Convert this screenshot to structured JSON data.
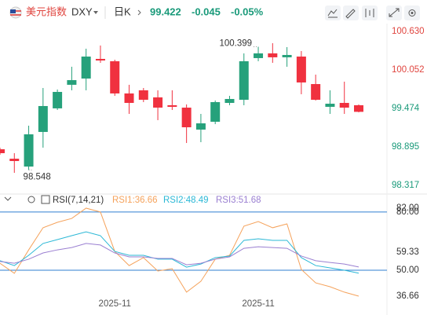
{
  "header": {
    "name": "美元指数",
    "symbol": "DXY",
    "period": "日K",
    "price": 99.422,
    "change": -0.045,
    "change_pct": "-0.05%"
  },
  "chart_data": [
    {
      "type": "candlestick",
      "categories": [
        null,
        null,
        null,
        null,
        null,
        null,
        null,
        null,
        "2025-11",
        null,
        null,
        null,
        null,
        null,
        null,
        null,
        null,
        null,
        "2025-11",
        null,
        null,
        null,
        null,
        null,
        null,
        null
      ],
      "open": [
        98.86,
        98.718,
        98.6,
        99.12,
        99.474,
        99.828,
        99.922,
        100.217,
        100.182,
        99.698,
        99.745,
        99.639,
        99.521,
        99.485,
        99.155,
        99.273,
        99.556,
        99.603,
        100.229,
        100.3,
        100.241,
        100.252,
        99.839,
        99.497,
        99.556,
        99.521
      ],
      "high": [
        98.884,
        98.801,
        99.214,
        99.78,
        99.757,
        100.099,
        100.37,
        100.418,
        100.205,
        99.828,
        99.78,
        99.745,
        99.745,
        99.533,
        99.391,
        99.592,
        99.662,
        100.3,
        100.399,
        100.453,
        100.394,
        100.335,
        99.981,
        99.745,
        99.875,
        99.533
      ],
      "low": [
        98.777,
        98.506,
        98.548,
        98.884,
        99.45,
        99.745,
        99.745,
        100.158,
        99.662,
        99.391,
        99.568,
        99.297,
        99.45,
        98.954,
        98.966,
        99.237,
        99.521,
        99.521,
        100.182,
        100.158,
        100.099,
        99.686,
        99.592,
        99.391,
        99.391,
        99.415
      ],
      "close": [
        98.801,
        98.683,
        99.084,
        99.509,
        99.721,
        99.898,
        100.252,
        100.193,
        99.698,
        99.556,
        99.603,
        99.485,
        99.497,
        99.19,
        99.249,
        99.568,
        99.615,
        100.182,
        100.3,
        100.241,
        100.276,
        99.863,
        99.603,
        99.544,
        99.485,
        99.422
      ],
      "up_color": "#26a17b",
      "down_color": "#f0313f",
      "annotate_high": 18,
      "annotate_low": 2,
      "ylim": [
        98.211,
        100.842
      ],
      "yticks": [
        {
          "value": 100.63,
          "label": "100.630"
        },
        {
          "value": 100.052,
          "label": "100.052"
        },
        {
          "value": 99.474,
          "label": "99.474"
        },
        {
          "value": 98.895,
          "label": "98.895"
        },
        {
          "value": 98.317,
          "label": "98.317"
        }
      ],
      "ytick_colors": [
        "#e0453f",
        "#e0453f",
        "#1a9a7a",
        "#1a9a7a",
        "#1a9a7a"
      ]
    },
    {
      "type": "line",
      "title": "RSI(7,14,21)",
      "series": [
        {
          "name": "RSI1:36.66",
          "color": "#f5a25b",
          "values": [
            53.6,
            48.4,
            60.5,
            71.9,
            74.7,
            76.7,
            82.0,
            80.0,
            59.7,
            52.4,
            56.5,
            49.6,
            50.8,
            38.7,
            44.3,
            55.7,
            57.7,
            72.7,
            75.1,
            71.9,
            73.9,
            50.4,
            43.5,
            41.5,
            38.7,
            36.66
          ]
        },
        {
          "name": "RSI2:48.49",
          "color": "#2bb8d6",
          "values": [
            54.9,
            52.4,
            57.7,
            63.8,
            65.8,
            67.8,
            69.8,
            67.8,
            59.7,
            57.7,
            57.7,
            55.7,
            55.7,
            51.6,
            53.2,
            56.5,
            57.3,
            65.4,
            66.2,
            65.4,
            65.4,
            56.5,
            52.4,
            51.2,
            50.0,
            48.49
          ]
        },
        {
          "name": "RSI3:51.68",
          "color": "#9a7fd1",
          "values": [
            54.5,
            53.6,
            55.7,
            58.9,
            60.5,
            61.7,
            63.8,
            63.0,
            58.9,
            56.9,
            56.9,
            56.1,
            56.1,
            52.8,
            53.6,
            55.7,
            56.9,
            61.3,
            62.1,
            61.7,
            61.3,
            57.3,
            54.9,
            54.0,
            53.2,
            51.68
          ]
        }
      ],
      "ylim": [
        30.57,
        83.2
      ],
      "yticks": [
        {
          "value": 82,
          "label": "82.00"
        },
        {
          "value": 80,
          "label": "80.00"
        },
        {
          "value": 59.33,
          "label": "59.33"
        },
        {
          "value": 50,
          "label": "50.00"
        },
        {
          "value": 36.66,
          "label": "36.66"
        }
      ],
      "reference_lines": [
        80,
        50
      ],
      "reference_color": "#2f7fd0"
    }
  ]
}
